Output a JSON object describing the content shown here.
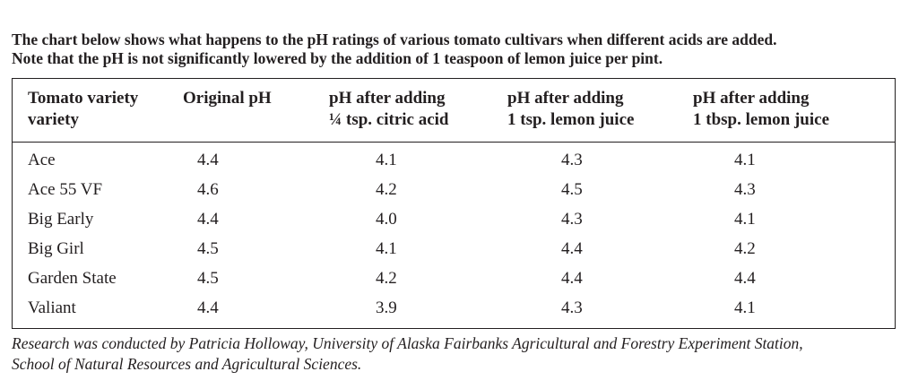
{
  "intro": {
    "line1": "The chart below shows what happens to the pH ratings of various tomato cultivars when different acids are added.",
    "line2": "Note that the pH is not significantly lowered by the addition of 1 teaspoon of lemon juice per pint."
  },
  "table": {
    "headers": [
      {
        "line1": "Tomato variety",
        "line2": "variety"
      },
      {
        "line1": "Original pH",
        "line2": ""
      },
      {
        "line1": "pH after adding",
        "line2": "¼ tsp. citric acid"
      },
      {
        "line1": "pH after adding",
        "line2": "1 tsp. lemon juice"
      },
      {
        "line1": "pH after adding",
        "line2": "1 tbsp. lemon juice"
      }
    ],
    "rows": [
      [
        "Ace",
        "4.4",
        "4.1",
        "4.3",
        "4.1"
      ],
      [
        "Ace 55 VF",
        "4.6",
        "4.2",
        "4.5",
        "4.3"
      ],
      [
        "Big Early",
        "4.4",
        "4.0",
        "4.3",
        "4.1"
      ],
      [
        "Big Girl",
        "4.5",
        "4.1",
        "4.4",
        "4.2"
      ],
      [
        "Garden State",
        "4.5",
        "4.2",
        "4.4",
        "4.4"
      ],
      [
        "Valiant",
        "4.4",
        "3.9",
        "4.3",
        "4.1"
      ]
    ]
  },
  "footnote": {
    "line1": "Research was conducted by Patricia Holloway, University of Alaska Fairbanks Agricultural and Forestry Experiment Station,",
    "line2": "School of Natural Resources and Agricultural Sciences."
  }
}
